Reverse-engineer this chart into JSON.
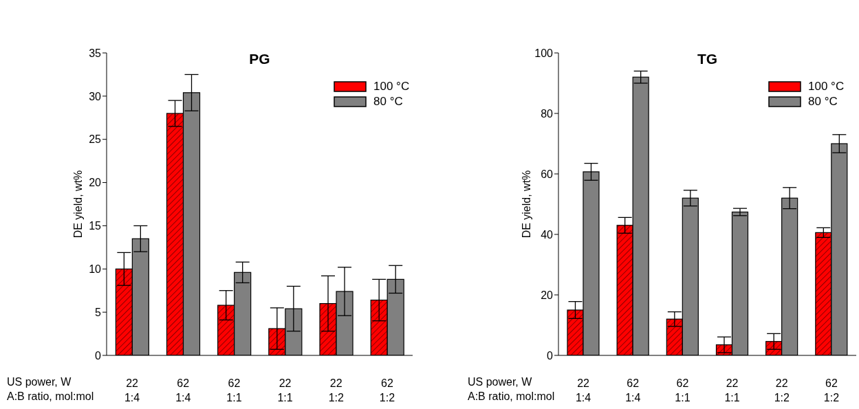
{
  "chart_data": [
    {
      "type": "bar",
      "title": "PG",
      "ylabel": "DE yield, wt%",
      "xlabel": "US power, W\nA:B ratio, mol:mol",
      "categories": [
        "22\n1:4",
        "62\n1:4",
        "62\n1:1",
        "22\n1:1",
        "22\n1:2",
        "62\n1:2"
      ],
      "series": [
        {
          "name": "100 °C",
          "color": "#ff0000",
          "values": [
            10,
            28,
            5.8,
            3.1,
            6,
            6.4
          ],
          "errors": [
            1.9,
            1.5,
            1.7,
            2.4,
            3.2,
            2.4
          ]
        },
        {
          "name": "80 °C",
          "color": "#808080",
          "values": [
            13.5,
            30.4,
            9.6,
            5.4,
            7.4,
            8.8
          ],
          "errors": [
            1.5,
            2.1,
            1.2,
            2.6,
            2.8,
            1.6
          ]
        }
      ],
      "ylim": [
        0,
        35
      ],
      "yticks": [
        0,
        5,
        10,
        15,
        20,
        25,
        30,
        35
      ],
      "legend": "top right",
      "grid": false
    },
    {
      "type": "bar",
      "title": "TG",
      "ylabel": "DE yield, wt%",
      "xlabel": "US power, W\nA:B ratio, mol:mol",
      "categories": [
        "22\n1:4",
        "62\n1:4",
        "62\n1:1",
        "22\n1:1",
        "22\n1:2",
        "62\n1:2"
      ],
      "series": [
        {
          "name": "100 °C",
          "color": "#ff0000",
          "values": [
            15,
            43,
            12,
            3.5,
            4.6,
            40.6
          ],
          "errors": [
            2.8,
            2.6,
            2.4,
            2.6,
            2.6,
            1.6
          ]
        },
        {
          "name": "80 °C",
          "color": "#808080",
          "values": [
            60.7,
            92,
            52,
            47.4,
            52,
            70
          ],
          "errors": [
            2.8,
            2,
            2.6,
            1.2,
            3.5,
            3
          ]
        }
      ],
      "ylim": [
        0,
        100
      ],
      "yticks": [
        0,
        20,
        40,
        60,
        80,
        100
      ],
      "legend": "top right",
      "grid": false
    }
  ]
}
